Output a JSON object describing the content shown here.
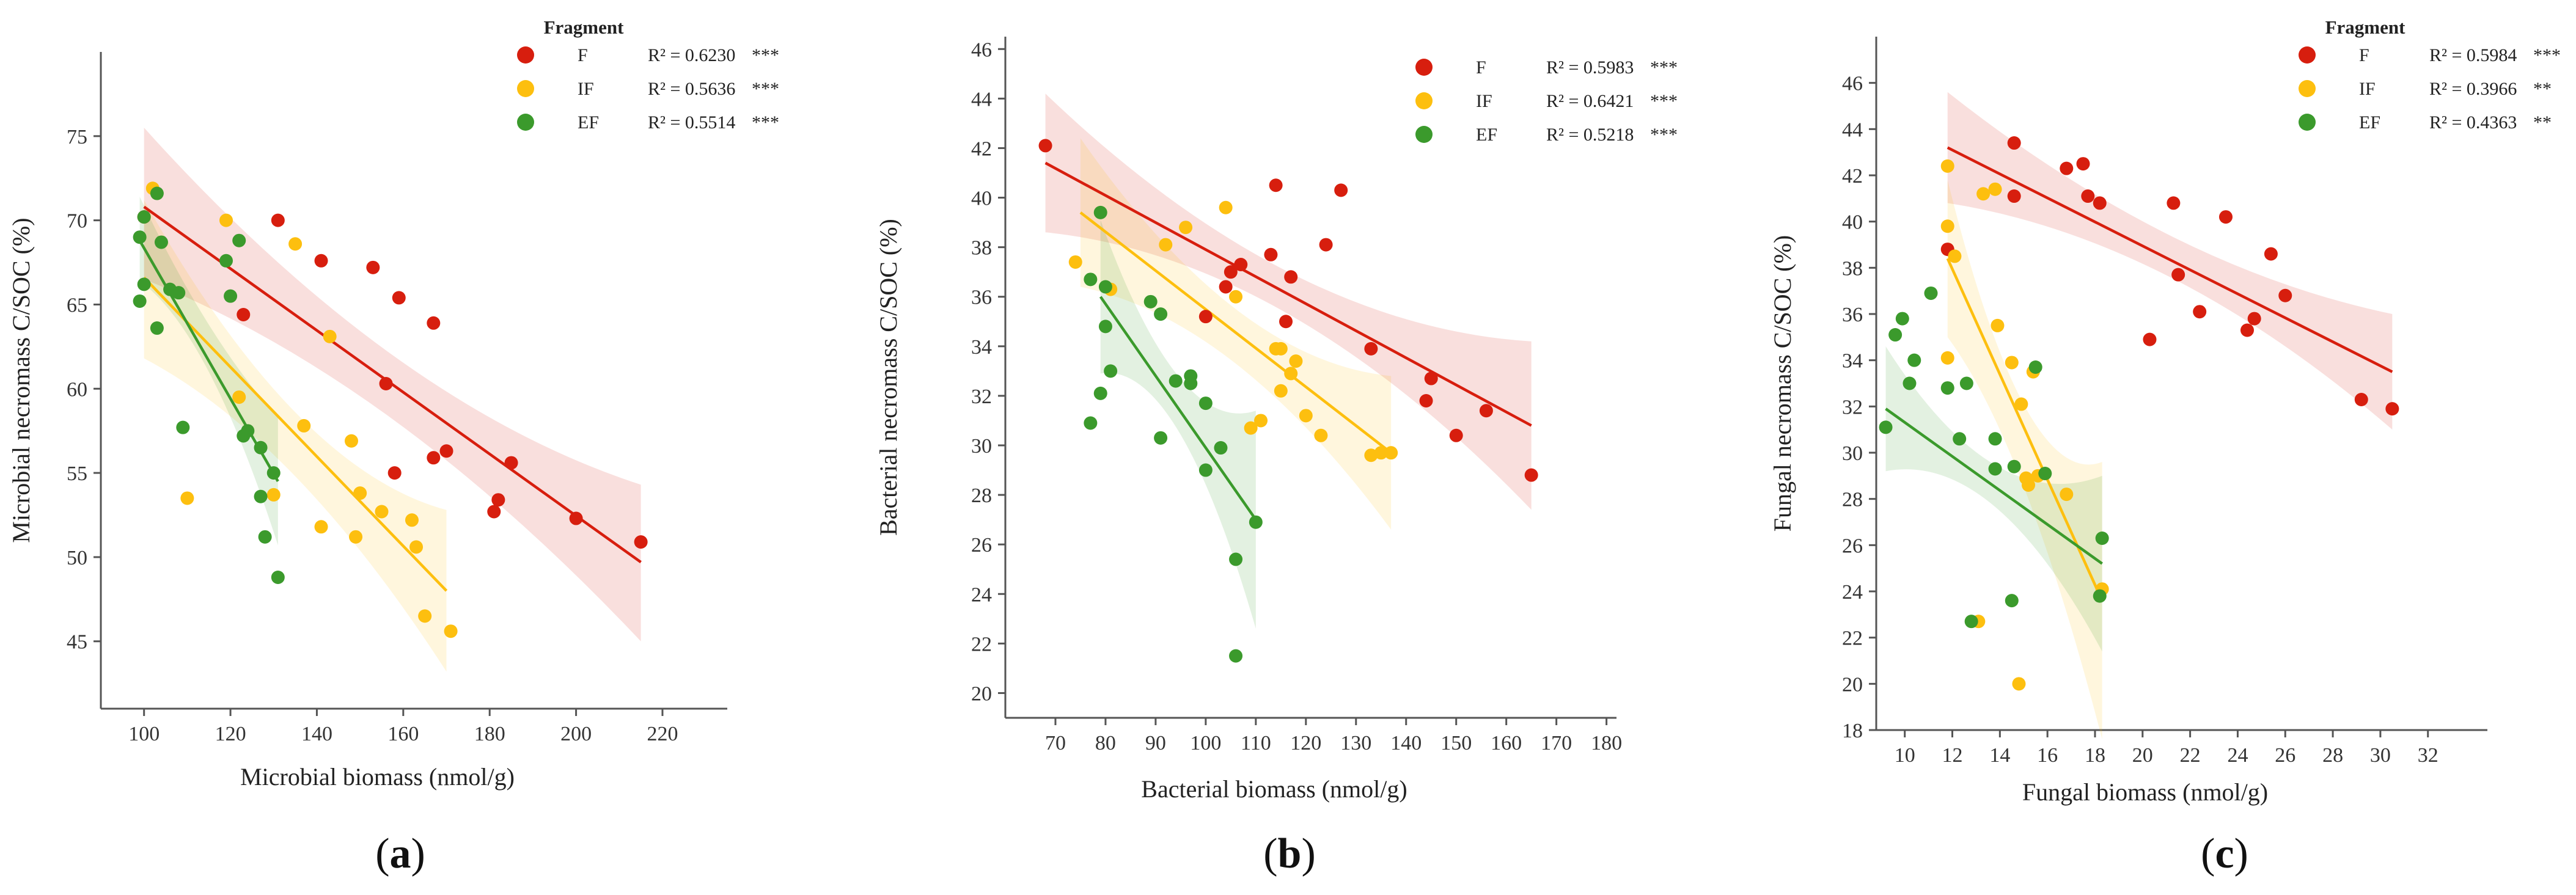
{
  "chart_data": [
    {
      "type": "scatter",
      "panel_label": "a",
      "xlabel": "Microbial biomass (nmol/g)",
      "ylabel": "Microbial necromass C/SOC (%)",
      "xlim": [
        90,
        235
      ],
      "ylim": [
        41,
        80
      ],
      "xticks": [
        100,
        120,
        140,
        160,
        180,
        200,
        220
      ],
      "yticks": [
        45,
        50,
        55,
        60,
        65,
        70,
        75
      ],
      "legend_title": "Fragment",
      "legend_position": "top-right",
      "series": [
        {
          "name": "F",
          "color": "#d71e0e",
          "r2": "R² = 0.6230",
          "sig": "***",
          "fit": {
            "x0": 100,
            "x1": 215,
            "y0": 70.8,
            "y1": 49.7
          },
          "band": {
            "lo0": 66.5,
            "hi0": 75.5,
            "mid_lo": 58.2,
            "mid_hi": 62.0,
            "lo1": 45.0,
            "hi1": 54.3
          },
          "points": [
            [
              100,
              70.2
            ],
            [
              131,
              70.0
            ],
            [
              141,
              67.6
            ],
            [
              153,
              67.2
            ],
            [
              159,
              65.4
            ],
            [
              167,
              63.9
            ],
            [
              123,
              64.4
            ],
            [
              156,
              60.3
            ],
            [
              158,
              55.0
            ],
            [
              167,
              55.9
            ],
            [
              170,
              56.3
            ],
            [
              182,
              53.4
            ],
            [
              185,
              55.6
            ],
            [
              181,
              52.7
            ],
            [
              200,
              52.3
            ],
            [
              215,
              50.9
            ]
          ]
        },
        {
          "name": "IF",
          "color": "#fdbf0f",
          "r2": "R² = 0.5636",
          "sig": "***",
          "fit": {
            "x0": 100,
            "x1": 170,
            "y0": 66.6,
            "y1": 48.0
          },
          "band": {
            "lo0": 61.8,
            "hi0": 71.2,
            "mid_lo": 54.8,
            "mid_hi": 58.6,
            "lo1": 43.2,
            "hi1": 52.8
          },
          "points": [
            [
              102,
              71.9
            ],
            [
              119,
              70.0
            ],
            [
              135,
              68.6
            ],
            [
              143,
              63.1
            ],
            [
              122,
              59.5
            ],
            [
              137,
              57.8
            ],
            [
              148,
              56.9
            ],
            [
              150,
              53.8
            ],
            [
              155,
              52.7
            ],
            [
              149,
              51.2
            ],
            [
              141,
              51.8
            ],
            [
              162,
              52.2
            ],
            [
              163,
              50.6
            ],
            [
              165,
              46.5
            ],
            [
              171,
              45.6
            ],
            [
              110,
              53.5
            ],
            [
              130,
              53.7
            ]
          ]
        },
        {
          "name": "EF",
          "color": "#3b9a2c",
          "r2": "R² = 0.5514",
          "sig": "***",
          "fit": {
            "x0": 99,
            "x1": 131,
            "y0": 68.8,
            "y1": 54.5
          },
          "band": {
            "lo0": 66.4,
            "hi0": 71.4,
            "mid_lo": 61.0,
            "mid_hi": 63.8,
            "lo1": 50.7,
            "hi1": 58.3
          },
          "points": [
            [
              99,
              69.0
            ],
            [
              100,
              70.2
            ],
            [
              103,
              71.6
            ],
            [
              104,
              68.7
            ],
            [
              100,
              66.2
            ],
            [
              99,
              65.2
            ],
            [
              103,
              63.6
            ],
            [
              106,
              65.9
            ],
            [
              108,
              65.7
            ],
            [
              119,
              67.6
            ],
            [
              122,
              68.8
            ],
            [
              120,
              65.5
            ],
            [
              109,
              57.7
            ],
            [
              123,
              57.2
            ],
            [
              124,
              57.5
            ],
            [
              127,
              56.5
            ],
            [
              127,
              53.6
            ],
            [
              128,
              51.2
            ],
            [
              131,
              48.8
            ],
            [
              130,
              55.0
            ]
          ]
        }
      ]
    },
    {
      "type": "scatter",
      "panel_label": "b",
      "xlabel": "Bacterial biomass (nmol/g)",
      "ylabel": "Bacterial necromass C/SOC (%)",
      "xlim": [
        60,
        182
      ],
      "ylim": [
        19,
        46.5
      ],
      "xticks": [
        70,
        80,
        90,
        100,
        110,
        120,
        130,
        140,
        150,
        160,
        170,
        180
      ],
      "yticks": [
        20,
        22,
        24,
        26,
        28,
        30,
        32,
        34,
        36,
        38,
        40,
        42,
        44,
        46
      ],
      "legend_title": "",
      "legend_position": "top-right",
      "series": [
        {
          "name": "F",
          "color": "#d71e0e",
          "r2": "R² = 0.5983",
          "sig": "***",
          "fit": {
            "x0": 68,
            "x1": 165,
            "y0": 41.4,
            "y1": 30.8
          },
          "band": {
            "lo0": 38.6,
            "hi0": 44.2,
            "mid_lo": 35.3,
            "mid_hi": 37.0,
            "lo1": 27.4,
            "hi1": 34.2
          },
          "points": [
            [
              68,
              42.1
            ],
            [
              100,
              35.2
            ],
            [
              104,
              36.4
            ],
            [
              105,
              37.0
            ],
            [
              107,
              37.3
            ],
            [
              113,
              37.7
            ],
            [
              114,
              40.5
            ],
            [
              117,
              36.8
            ],
            [
              116,
              35.0
            ],
            [
              124,
              38.1
            ],
            [
              127,
              40.3
            ],
            [
              133,
              33.9
            ],
            [
              145,
              32.7
            ],
            [
              144,
              31.8
            ],
            [
              150,
              30.4
            ],
            [
              156,
              31.4
            ],
            [
              165,
              28.8
            ]
          ]
        },
        {
          "name": "IF",
          "color": "#fdbf0f",
          "r2": "R² = 0.6421",
          "sig": "***",
          "fit": {
            "x0": 75,
            "x1": 137,
            "y0": 39.4,
            "y1": 29.7
          },
          "band": {
            "lo0": 36.4,
            "hi0": 42.4,
            "mid_lo": 33.3,
            "mid_hi": 35.5,
            "lo1": 26.6,
            "hi1": 32.8
          },
          "points": [
            [
              74,
              37.4
            ],
            [
              81,
              36.3
            ],
            [
              92,
              38.1
            ],
            [
              96,
              38.8
            ],
            [
              104,
              39.6
            ],
            [
              106,
              36.0
            ],
            [
              114,
              33.9
            ],
            [
              115,
              33.9
            ],
            [
              115,
              32.2
            ],
            [
              117,
              32.9
            ],
            [
              118,
              33.4
            ],
            [
              120,
              31.2
            ],
            [
              123,
              30.4
            ],
            [
              109,
              30.7
            ],
            [
              111,
              31.0
            ],
            [
              133,
              29.6
            ],
            [
              135,
              29.7
            ],
            [
              137,
              29.7
            ]
          ]
        },
        {
          "name": "EF",
          "color": "#3b9a2c",
          "r2": "R² = 0.5218",
          "sig": "***",
          "fit": {
            "x0": 79,
            "x1": 110,
            "y0": 36.0,
            "y1": 27.0
          },
          "band": {
            "lo0": 32.9,
            "hi0": 39.1,
            "mid_lo": 30.6,
            "mid_hi": 32.8,
            "lo1": 22.6,
            "hi1": 31.4
          },
          "points": [
            [
              79,
              39.4
            ],
            [
              77,
              36.7
            ],
            [
              80,
              36.4
            ],
            [
              80,
              34.8
            ],
            [
              81,
              33.0
            ],
            [
              79,
              32.1
            ],
            [
              77,
              30.9
            ],
            [
              89,
              35.8
            ],
            [
              91,
              35.3
            ],
            [
              94,
              32.6
            ],
            [
              97,
              32.8
            ],
            [
              97,
              32.5
            ],
            [
              100,
              31.7
            ],
            [
              91,
              30.3
            ],
            [
              103,
              29.9
            ],
            [
              100,
              29.0
            ],
            [
              110,
              26.9
            ],
            [
              106,
              25.4
            ],
            [
              106,
              21.5
            ]
          ]
        }
      ]
    },
    {
      "type": "scatter",
      "panel_label": "c",
      "xlabel": "Fungal biomass (nmol/g)",
      "ylabel": "Fungal necromass C/SOC (%)",
      "xlim": [
        8.8,
        34.5
      ],
      "ylim": [
        18,
        48
      ],
      "xticks": [
        10,
        12,
        14,
        16,
        18,
        20,
        22,
        24,
        26,
        28,
        30,
        32
      ],
      "yticks": [
        18,
        20,
        22,
        24,
        26,
        28,
        30,
        32,
        34,
        36,
        38,
        40,
        42,
        44,
        46
      ],
      "legend_title": "Fragment",
      "legend_position": "top-right",
      "series": [
        {
          "name": "F",
          "color": "#d71e0e",
          "r2": "R² = 0.5984",
          "sig": "***",
          "fit": {
            "x0": 11.8,
            "x1": 30.5,
            "y0": 43.2,
            "y1": 33.5
          },
          "band": {
            "lo0": 40.8,
            "hi0": 45.6,
            "mid_lo": 37.6,
            "mid_hi": 39.4,
            "lo1": 31.0,
            "hi1": 36.0
          },
          "points": [
            [
              11.8,
              38.8
            ],
            [
              14.6,
              43.4
            ],
            [
              14.6,
              41.1
            ],
            [
              16.8,
              42.3
            ],
            [
              17.5,
              42.5
            ],
            [
              17.7,
              41.1
            ],
            [
              18.2,
              40.8
            ],
            [
              21.3,
              40.8
            ],
            [
              21.5,
              37.7
            ],
            [
              22.4,
              36.1
            ],
            [
              23.5,
              40.2
            ],
            [
              24.4,
              35.3
            ],
            [
              24.7,
              35.8
            ],
            [
              25.4,
              38.6
            ],
            [
              26.0,
              36.8
            ],
            [
              20.3,
              34.9
            ],
            [
              29.2,
              32.3
            ],
            [
              30.5,
              31.9
            ]
          ]
        },
        {
          "name": "IF",
          "color": "#fdbf0f",
          "r2": "R² = 0.3966",
          "sig": "**",
          "fit": {
            "x0": 11.8,
            "x1": 18.3,
            "y0": 38.4,
            "y1": 23.6
          },
          "band": {
            "lo0": 35.0,
            "hi0": 41.8,
            "mid_lo": 28.4,
            "mid_hi": 32.0,
            "lo1": 17.6,
            "hi1": 29.6
          },
          "points": [
            [
              11.8,
              42.4
            ],
            [
              11.8,
              39.8
            ],
            [
              12.1,
              38.5
            ],
            [
              13.3,
              41.2
            ],
            [
              13.8,
              41.4
            ],
            [
              13.9,
              35.5
            ],
            [
              11.8,
              34.1
            ],
            [
              14.5,
              33.9
            ],
            [
              15.2,
              28.6
            ],
            [
              15.4,
              33.5
            ],
            [
              15.1,
              28.9
            ],
            [
              16.8,
              28.2
            ],
            [
              18.3,
              24.1
            ],
            [
              14.9,
              32.1
            ],
            [
              13.1,
              22.7
            ],
            [
              14.8,
              20.0
            ],
            [
              15.6,
              29.0
            ]
          ]
        },
        {
          "name": "EF",
          "color": "#3b9a2c",
          "r2": "R² = 0.4363",
          "sig": "**",
          "fit": {
            "x0": 9.2,
            "x1": 18.3,
            "y0": 31.9,
            "y1": 25.2
          },
          "band": {
            "lo0": 29.2,
            "hi0": 34.6,
            "mid_lo": 27.7,
            "mid_hi": 29.5,
            "lo1": 21.4,
            "hi1": 29.0
          },
          "points": [
            [
              9.2,
              31.1
            ],
            [
              9.6,
              35.1
            ],
            [
              9.9,
              35.8
            ],
            [
              10.2,
              33.0
            ],
            [
              10.4,
              34.0
            ],
            [
              11.1,
              36.9
            ],
            [
              11.8,
              32.8
            ],
            [
              12.6,
              33.0
            ],
            [
              12.3,
              30.6
            ],
            [
              13.8,
              30.6
            ],
            [
              13.8,
              29.3
            ],
            [
              14.6,
              29.4
            ],
            [
              15.5,
              33.7
            ],
            [
              15.9,
              29.1
            ],
            [
              18.3,
              26.3
            ],
            [
              18.2,
              23.8
            ],
            [
              12.8,
              22.7
            ],
            [
              14.5,
              23.6
            ]
          ]
        }
      ]
    }
  ]
}
